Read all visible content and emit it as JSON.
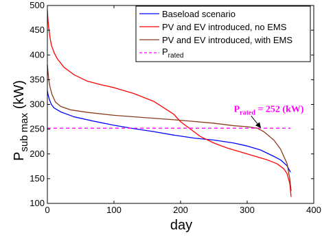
{
  "chart_data": {
    "type": "line",
    "xlabel": "day",
    "ylabel_main": "P",
    "ylabel_sub": "sub max",
    "ylabel_unit": " (kW)",
    "xlim": [
      0,
      400
    ],
    "ylim": [
      100,
      500
    ],
    "xticks": [
      0,
      100,
      200,
      300,
      400
    ],
    "yticks": [
      100,
      150,
      200,
      250,
      300,
      350,
      400,
      450,
      500
    ],
    "grid": false,
    "legend_position": "top-right",
    "series": [
      {
        "name": "Baseload scenario",
        "color": "#0000ff",
        "dash": false,
        "x": [
          0,
          1,
          3,
          6,
          10,
          20,
          40,
          70,
          100,
          130,
          160,
          190,
          220,
          250,
          280,
          300,
          320,
          340,
          350,
          360,
          365
        ],
        "y": [
          328,
          320,
          310,
          300,
          293,
          285,
          275,
          266,
          258,
          251,
          245,
          238,
          232,
          228,
          222,
          216,
          208,
          195,
          188,
          176,
          163
        ]
      },
      {
        "name": "PV and EV introduced, no EMS",
        "color": "#ff0000",
        "dash": false,
        "x": [
          0,
          1,
          2,
          4,
          6,
          10,
          15,
          25,
          40,
          60,
          80,
          100,
          130,
          160,
          190,
          200,
          215,
          230,
          250,
          270,
          290,
          310,
          330,
          345,
          355,
          360,
          364,
          366
        ],
        "y": [
          490,
          470,
          455,
          435,
          420,
          405,
          392,
          375,
          360,
          347,
          340,
          334,
          322,
          306,
          280,
          265,
          250,
          235,
          222,
          212,
          204,
          196,
          188,
          180,
          170,
          160,
          140,
          113
        ]
      },
      {
        "name": "PV and EV introduced, with EMS",
        "color": "#8b3a1a",
        "dash": false,
        "x": [
          0,
          1,
          2,
          4,
          7,
          12,
          20,
          35,
          60,
          100,
          150,
          200,
          250,
          280,
          300,
          315,
          325,
          340,
          350,
          360,
          364,
          366
        ],
        "y": [
          380,
          365,
          350,
          335,
          320,
          305,
          296,
          289,
          284,
          278,
          273,
          268,
          262,
          257,
          255,
          252,
          245,
          228,
          210,
          180,
          150,
          125
        ]
      },
      {
        "name": "P_rated",
        "color": "#ff00ff",
        "dash": true,
        "x": [
          0,
          365
        ],
        "y": [
          252,
          252
        ]
      }
    ],
    "legend": [
      {
        "main": "Baseload scenario",
        "sub": ""
      },
      {
        "main": "PV and EV introduced, no EMS",
        "sub": ""
      },
      {
        "main": "PV and EV introduced, with EMS",
        "sub": ""
      },
      {
        "main": "P",
        "sub": "rated"
      }
    ],
    "annotation": {
      "main": "P",
      "sub": "rated",
      "rest": " = 252 (kW)",
      "color": "#ff00ff",
      "arrow_to": [
        320,
        252
      ],
      "text_at": [
        280,
        285
      ]
    }
  }
}
